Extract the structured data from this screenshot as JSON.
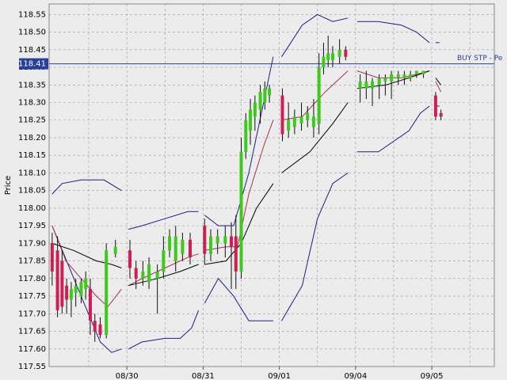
{
  "chart_data": {
    "type": "candlestick",
    "y_label": "Price",
    "xlim": [
      -1.02,
      4.82
    ],
    "ylim": [
      117.55,
      118.58
    ],
    "grid": true,
    "xticks": [
      {
        "value": 0,
        "label": "08/30"
      },
      {
        "value": 1,
        "label": "08/31"
      },
      {
        "value": 2,
        "label": "09/01"
      },
      {
        "value": 3,
        "label": "09/04"
      },
      {
        "value": 4,
        "label": "09/05"
      }
    ],
    "minor_xticks": [
      -0.5,
      0.5,
      1.5,
      2.5,
      3.5,
      4.5
    ],
    "yticks": [
      117.55,
      {
        "value": 117.6,
        "label": "117.60"
      },
      117.65,
      {
        "value": 117.7,
        "label": "117.70"
      },
      117.75,
      {
        "value": 117.8,
        "label": "117.80"
      },
      117.85,
      {
        "value": 117.9,
        "label": "117.90"
      },
      117.95,
      {
        "value": 118.0,
        "label": "118.00"
      },
      118.05,
      {
        "value": 118.1,
        "label": "118.10"
      },
      118.15,
      {
        "value": 118.2,
        "label": "118.20"
      },
      118.25,
      {
        "value": 118.3,
        "label": "118.30"
      },
      118.35,
      {
        "value": 118.4,
        "label": "118.40"
      },
      118.45,
      {
        "value": 118.5,
        "label": "118.50"
      },
      118.55
    ],
    "up_color": "#3fc81e",
    "down_color": "#cc1f55",
    "x": [
      -0.98,
      -0.91,
      -0.85,
      -0.79,
      -0.73,
      -0.67,
      -0.6,
      -0.54,
      -0.48,
      -0.42,
      -0.35,
      -0.27,
      -0.15,
      0.04,
      0.12,
      0.21,
      0.29,
      0.4,
      0.48,
      0.56,
      0.64,
      0.73,
      0.83,
      1.02,
      1.1,
      1.19,
      1.29,
      1.37,
      1.43,
      1.5,
      1.56,
      1.62,
      1.68,
      1.75,
      1.81,
      1.87,
      2.04,
      2.12,
      2.2,
      2.29,
      2.37,
      2.45,
      2.52,
      2.58,
      2.64,
      2.7,
      2.79,
      2.87,
      3.06,
      3.14,
      3.22,
      3.31,
      3.39,
      3.47,
      3.56,
      3.64,
      3.72,
      3.8,
      3.89,
      4.05,
      4.12
    ],
    "open": [
      117.9,
      117.88,
      117.85,
      117.78,
      117.74,
      117.76,
      117.75,
      117.77,
      117.77,
      117.68,
      117.67,
      117.64,
      117.87,
      117.88,
      117.83,
      117.8,
      117.79,
      117.8,
      117.82,
      117.88,
      117.85,
      117.87,
      117.91,
      117.95,
      117.87,
      117.9,
      117.9,
      117.92,
      117.92,
      117.82,
      118.16,
      118.22,
      118.26,
      118.28,
      118.3,
      118.32,
      118.32,
      118.22,
      118.23,
      118.24,
      118.25,
      118.23,
      118.24,
      118.4,
      118.42,
      118.42,
      118.43,
      118.45,
      118.34,
      118.34,
      118.34,
      118.35,
      118.36,
      118.36,
      118.37,
      118.37,
      118.37,
      118.38,
      118.38,
      118.32,
      118.27
    ],
    "high": [
      117.93,
      117.92,
      117.88,
      117.8,
      117.79,
      117.8,
      117.8,
      117.82,
      117.8,
      117.7,
      117.69,
      117.9,
      117.91,
      117.91,
      117.85,
      117.85,
      117.86,
      117.84,
      117.92,
      117.94,
      117.95,
      117.93,
      117.93,
      117.97,
      117.94,
      117.94,
      117.95,
      117.96,
      117.98,
      118.2,
      118.27,
      118.31,
      118.32,
      118.35,
      118.36,
      118.35,
      118.34,
      118.3,
      118.28,
      118.3,
      118.29,
      118.31,
      118.44,
      118.47,
      118.49,
      118.46,
      118.48,
      118.46,
      118.38,
      118.39,
      118.37,
      118.38,
      118.38,
      118.39,
      118.39,
      118.39,
      118.39,
      118.39,
      118.39,
      118.33,
      118.28
    ],
    "low": [
      117.78,
      117.69,
      117.7,
      117.7,
      117.69,
      117.72,
      117.73,
      117.74,
      117.64,
      117.62,
      117.63,
      117.63,
      117.86,
      117.8,
      117.77,
      117.78,
      117.77,
      117.7,
      117.8,
      117.86,
      117.82,
      117.85,
      117.84,
      117.84,
      117.85,
      117.87,
      117.86,
      117.77,
      117.77,
      117.8,
      118.14,
      118.18,
      118.22,
      118.24,
      118.28,
      118.3,
      118.19,
      118.2,
      118.21,
      118.22,
      118.23,
      118.2,
      118.21,
      118.38,
      118.4,
      118.4,
      118.41,
      118.42,
      118.3,
      118.31,
      118.29,
      118.31,
      118.32,
      118.31,
      118.35,
      118.35,
      118.36,
      118.37,
      118.37,
      118.25,
      118.25
    ],
    "close": [
      117.82,
      117.71,
      117.72,
      117.74,
      117.77,
      117.78,
      117.79,
      117.8,
      117.68,
      117.65,
      117.64,
      117.88,
      117.89,
      117.83,
      117.8,
      117.82,
      117.84,
      117.82,
      117.88,
      117.92,
      117.92,
      117.91,
      117.86,
      117.87,
      117.92,
      117.92,
      117.92,
      117.89,
      117.82,
      118.16,
      118.25,
      118.28,
      118.3,
      118.33,
      118.34,
      118.34,
      118.21,
      118.25,
      118.26,
      118.26,
      118.27,
      118.26,
      118.4,
      118.43,
      118.44,
      118.44,
      118.45,
      118.43,
      118.36,
      118.36,
      118.36,
      118.37,
      118.37,
      118.38,
      118.38,
      118.38,
      118.38,
      118.39,
      118.39,
      118.26,
      118.26
    ],
    "lines": [
      {
        "color": "#1c1c8a",
        "x": [
          -0.98,
          -0.85,
          -0.6,
          -0.3,
          -0.07,
          null,
          0.02,
          0.2,
          0.5,
          0.8,
          0.94,
          null,
          1.02,
          1.2,
          1.4,
          1.6,
          1.92,
          null,
          2.03,
          2.3,
          2.5,
          2.7,
          2.9,
          null,
          3.02,
          3.3,
          3.6,
          3.8,
          3.97,
          null,
          4.05,
          4.1
        ],
        "values": [
          118.04,
          118.07,
          118.08,
          118.08,
          118.05,
          null,
          117.94,
          117.95,
          117.97,
          117.99,
          117.99,
          null,
          117.98,
          117.95,
          117.95,
          118.1,
          118.43,
          null,
          118.43,
          118.52,
          118.55,
          118.53,
          118.54,
          null,
          118.53,
          118.53,
          118.52,
          118.5,
          118.47,
          null,
          118.47,
          118.47
        ]
      },
      {
        "color": "#1c1c8a",
        "x": [
          -0.98,
          -0.6,
          -0.35,
          -0.2,
          -0.07,
          null,
          0.02,
          0.2,
          0.5,
          0.7,
          0.85,
          0.94,
          null,
          1.02,
          1.2,
          1.4,
          1.6,
          1.92,
          null,
          2.03,
          2.3,
          2.5,
          2.7,
          2.9,
          null,
          3.02,
          3.3,
          3.5,
          3.7,
          3.85,
          3.97,
          null,
          4.05,
          4.1
        ],
        "values": [
          117.95,
          117.75,
          117.62,
          117.59,
          117.6,
          null,
          117.6,
          117.62,
          117.63,
          117.63,
          117.66,
          117.71,
          null,
          117.73,
          117.8,
          117.75,
          117.68,
          117.68,
          null,
          117.68,
          117.78,
          117.97,
          118.07,
          118.1,
          null,
          118.16,
          118.16,
          118.19,
          118.22,
          118.27,
          118.29,
          null,
          118.29,
          118.29
        ]
      },
      {
        "color": "#a83250",
        "x": [
          -0.98,
          -0.8,
          -0.6,
          -0.4,
          -0.25,
          -0.07,
          null,
          0.02,
          0.2,
          0.5,
          0.8,
          0.94,
          null,
          1.02,
          1.3,
          1.45,
          1.6,
          1.8,
          1.92,
          null,
          2.03,
          2.3,
          2.6,
          2.9,
          null,
          3.02,
          3.3,
          3.6,
          3.8,
          3.97,
          null,
          4.05,
          4.12
        ],
        "values": [
          117.95,
          117.85,
          117.8,
          117.75,
          117.72,
          117.77,
          null,
          117.78,
          117.8,
          117.83,
          117.86,
          117.87,
          null,
          117.88,
          117.89,
          117.89,
          118.04,
          118.18,
          118.25,
          null,
          118.25,
          118.26,
          118.33,
          118.39,
          null,
          118.39,
          118.37,
          118.37,
          118.38,
          118.39,
          null,
          118.36,
          118.33
        ]
      },
      {
        "color": "#000000",
        "x": [
          -0.98,
          -0.7,
          -0.4,
          -0.2,
          -0.07,
          null,
          0.02,
          0.4,
          0.7,
          0.94,
          null,
          1.02,
          1.3,
          1.5,
          1.7,
          1.92,
          null,
          2.03,
          2.4,
          2.7,
          2.9,
          null,
          3.02,
          3.4,
          3.7,
          3.97,
          null,
          4.05,
          4.12
        ],
        "values": [
          117.9,
          117.88,
          117.85,
          117.84,
          117.83,
          null,
          117.78,
          117.8,
          117.82,
          117.84,
          null,
          117.84,
          117.85,
          117.9,
          118.0,
          118.07,
          null,
          118.1,
          118.16,
          118.24,
          118.3,
          null,
          118.34,
          118.35,
          118.37,
          118.39,
          null,
          118.37,
          118.35
        ]
      }
    ],
    "marker": {
      "value": 118.41,
      "text": "BUY STP - Pe",
      "color": "#2a3f9a"
    }
  }
}
